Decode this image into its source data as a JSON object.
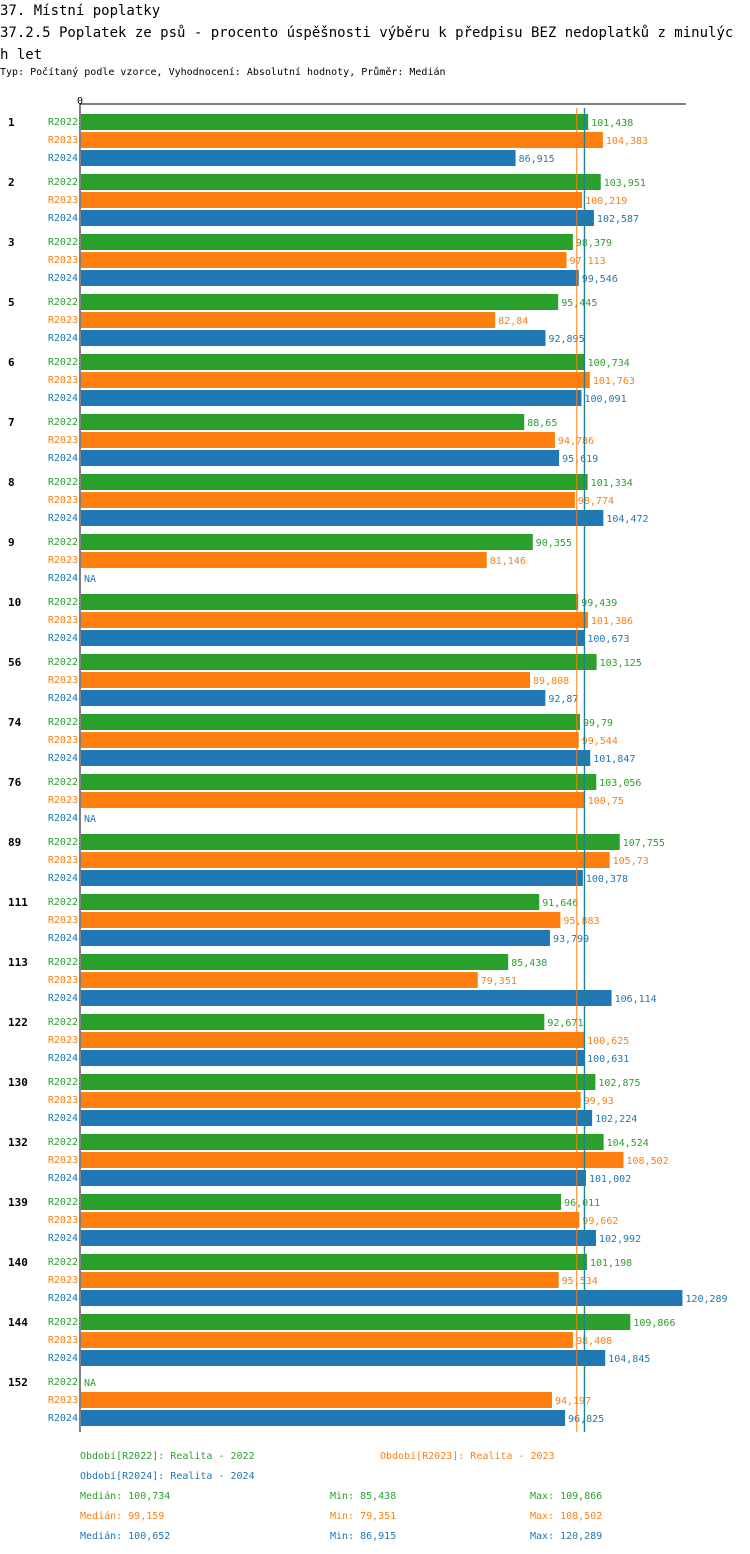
{
  "header": {
    "title": "37. Místní poplatky",
    "subtitle": "37.2.5 Poplatek ze psů - procento úspěšnosti výběru k předpisu BEZ nedoplatků z minulých let",
    "info": "Typ: Počítaný podle vzorce, Vyhodnocení: Absolutní hodnoty, Průměr: Medián"
  },
  "colors": {
    "R2022": "#2ca02c",
    "R2023": "#ff7f0e",
    "R2024": "#1f77b4"
  },
  "chart_data": {
    "type": "bar",
    "orientation": "horizontal",
    "x_tick_label": "0",
    "xlim": [
      0,
      120.289
    ],
    "series_names": [
      "R2022",
      "R2023",
      "R2024"
    ],
    "categories": [
      "1",
      "2",
      "3",
      "5",
      "6",
      "7",
      "8",
      "9",
      "10",
      "56",
      "74",
      "76",
      "89",
      "111",
      "113",
      "122",
      "130",
      "132",
      "139",
      "140",
      "144",
      "152"
    ],
    "series": [
      {
        "name": "R2022",
        "values": [
          101.438,
          103.951,
          98.379,
          95.445,
          100.734,
          88.65,
          101.334,
          90.355,
          99.439,
          103.125,
          99.79,
          103.056,
          107.755,
          91.646,
          85.438,
          92.671,
          102.875,
          104.524,
          96.011,
          101.198,
          109.866,
          null
        ],
        "labels": [
          "101,438",
          "103,951",
          "98,379",
          "95,445",
          "100,734",
          "88,65",
          "101,334",
          "90,355",
          "99,439",
          "103,125",
          "99,79",
          "103,056",
          "107,755",
          "91,646",
          "85,438",
          "92,671",
          "102,875",
          "104,524",
          "96,011",
          "101,198",
          "109,866",
          "NA"
        ]
      },
      {
        "name": "R2023",
        "values": [
          104.383,
          100.219,
          97.113,
          82.84,
          101.763,
          94.786,
          98.774,
          81.146,
          101.386,
          89.808,
          99.544,
          100.75,
          105.73,
          95.883,
          79.351,
          100.625,
          99.93,
          108.502,
          99.662,
          95.534,
          98.408,
          94.197
        ],
        "labels": [
          "104,383",
          "100,219",
          "97,113",
          "82,84",
          "101,763",
          "94,786",
          "98,774",
          "81,146",
          "101,386",
          "89,808",
          "99,544",
          "100,75",
          "105,73",
          "95,883",
          "79,351",
          "100,625",
          "99,93",
          "108,502",
          "99,662",
          "95,534",
          "98,408",
          "94,197"
        ]
      },
      {
        "name": "R2024",
        "values": [
          86.915,
          102.587,
          99.546,
          92.895,
          100.091,
          95.619,
          104.472,
          null,
          100.673,
          92.87,
          101.847,
          null,
          100.378,
          93.799,
          106.114,
          100.631,
          102.224,
          101.002,
          102.992,
          120.289,
          104.845,
          96.825
        ],
        "labels": [
          "86,915",
          "102,587",
          "99,546",
          "92,895",
          "100,091",
          "95,619",
          "104,472",
          "NA",
          "100,673",
          "92,87",
          "101,847",
          "NA",
          "100,378",
          "93,799",
          "106,114",
          "100,631",
          "102,224",
          "101,002",
          "102,992",
          "120,289",
          "104,845",
          "96,825"
        ]
      }
    ],
    "median_lines": [
      100.734,
      99.159,
      100.652
    ]
  },
  "legend": {
    "periods": [
      {
        "text": "Období[R2022]: Realita - 2022"
      },
      {
        "text": "Období[R2023]: Realita - 2023"
      },
      {
        "text": "Období[R2024]: Realita - 2024"
      }
    ],
    "stats": [
      {
        "median": "Medián: 100,734",
        "min": "Min: 85,438",
        "max": "Max: 109,866"
      },
      {
        "median": "Medián: 99,159",
        "min": "Min: 79,351",
        "max": "Max: 108,502"
      },
      {
        "median": "Medián: 100,652",
        "min": "Min: 86,915",
        "max": "Max: 120,289"
      }
    ]
  }
}
